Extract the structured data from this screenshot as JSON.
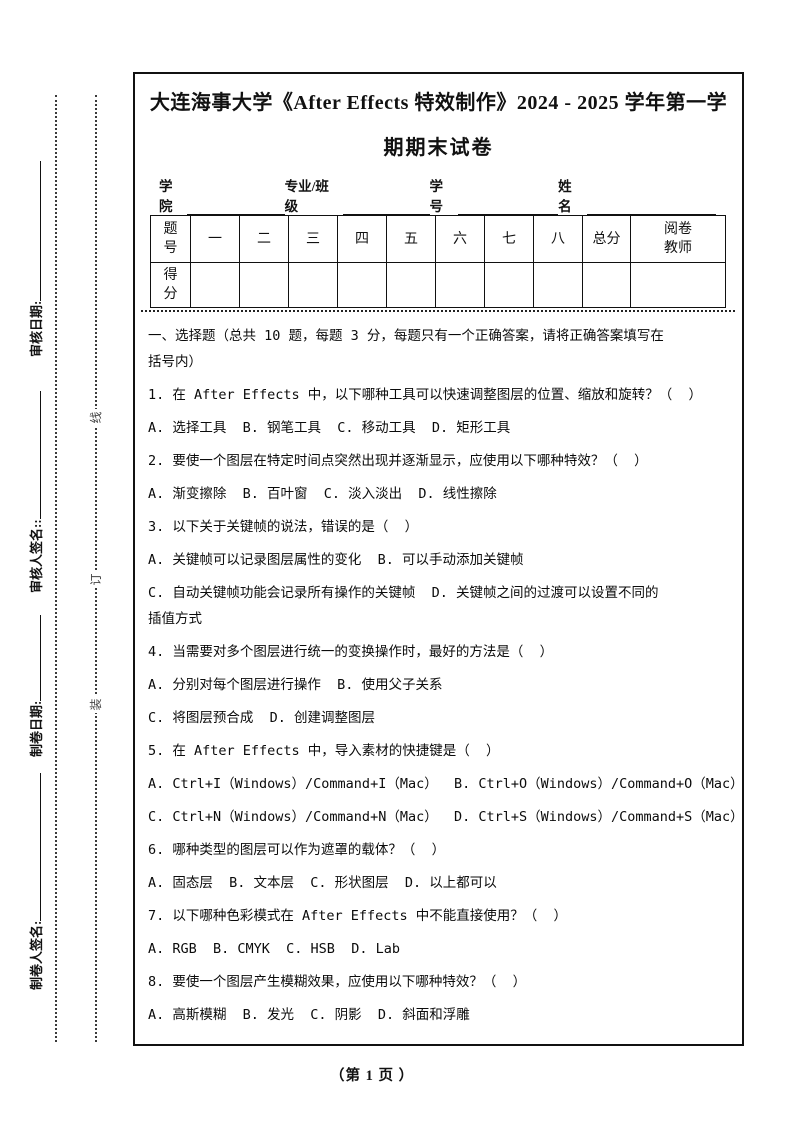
{
  "title": {
    "line1": "大连海事大学《After Effects 特效制作》2024 - 2025 学年第一学",
    "line2": "期期末试卷"
  },
  "binding_margin": {
    "labels": [
      {
        "text": "审核日期:"
      },
      {
        "text": "审核人签名::"
      },
      {
        "text": "制卷日期:"
      },
      {
        "text": "制卷人签名:"
      }
    ],
    "binding_chars": {
      "top": "线",
      "middle": "订",
      "bottom": "装"
    }
  },
  "header_fields": {
    "college": "学院",
    "major_class": "专业/班级",
    "student_id": "学号",
    "name": "姓名"
  },
  "score_table": {
    "header": [
      "题\n号",
      "一",
      "二",
      "三",
      "四",
      "五",
      "六",
      "七",
      "八",
      "总分",
      "阅卷\n教师"
    ],
    "row2_label": "得\n分"
  },
  "questions": {
    "lines": [
      "一、选择题（总共 10 题，每题 3 分，每题只有一个正确答案，请将正确答案填写在",
      "括号内）",
      "1. 在 After Effects 中，以下哪种工具可以快速调整图层的位置、缩放和旋转？（  ）",
      "A. 选择工具  B. 钢笔工具  C. 移动工具  D. 矩形工具",
      "2. 要使一个图层在特定时间点突然出现并逐渐显示，应使用以下哪种特效？（  ）",
      "A. 渐变擦除  B. 百叶窗  C. 淡入淡出  D. 线性擦除",
      "3. 以下关于关键帧的说法，错误的是（  ）",
      "A. 关键帧可以记录图层属性的变化  B. 可以手动添加关键帧",
      "C. 自动关键帧功能会记录所有操作的关键帧  D. 关键帧之间的过渡可以设置不同的",
      "插值方式",
      "4. 当需要对多个图层进行统一的变换操作时，最好的方法是（  ）",
      "A. 分别对每个图层进行操作  B. 使用父子关系",
      "C. 将图层预合成  D. 创建调整图层",
      "5. 在 After Effects 中，导入素材的快捷键是（  ）",
      "A. Ctrl+I（Windows）/Command+I（Mac）  B. Ctrl+O（Windows）/Command+O（Mac）",
      "C. Ctrl+N（Windows）/Command+N（Mac）  D. Ctrl+S（Windows）/Command+S（Mac）",
      "6. 哪种类型的图层可以作为遮罩的载体？（  ）",
      "A. 固态层  B. 文本层  C. 形状图层  D. 以上都可以",
      "7. 以下哪种色彩模式在 After Effects 中不能直接使用？（  ）",
      "A. RGB  B. CMYK  C. HSB  D. Lab",
      "8. 要使一个图层产生模糊效果，应使用以下哪种特效？（  ）",
      "A. 高斯模糊  B. 发光  C. 阴影  D. 斜面和浮雕"
    ]
  },
  "footer": {
    "page_label": "（第 1 页 ）"
  }
}
